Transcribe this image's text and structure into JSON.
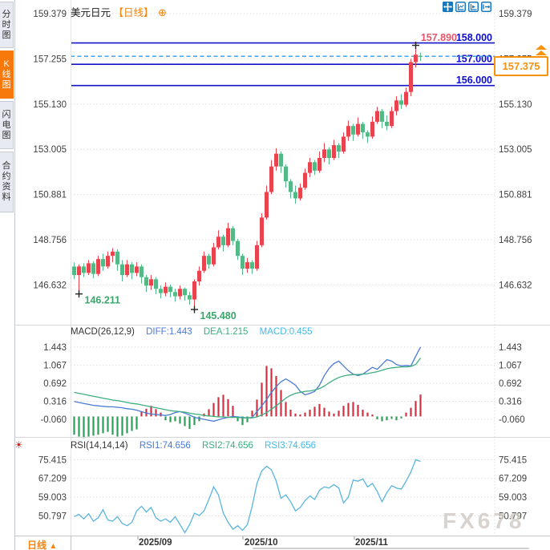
{
  "sidebar": {
    "tabs": [
      {
        "label": "分时图",
        "active": false
      },
      {
        "label": "K线图",
        "active": true
      },
      {
        "label": "闪电图",
        "active": false
      },
      {
        "label": "合约资料",
        "active": false
      }
    ]
  },
  "header": {
    "title": "美元日元",
    "period": "【日线】",
    "add_icon": "⊕"
  },
  "toolbar": {
    "icons": [
      "crosshair-move",
      "axis-range",
      "axis-play",
      "exit-chart"
    ]
  },
  "price_box": {
    "value": "157.375"
  },
  "bottom_bar": {
    "period_label": "日线",
    "arrow": "▲"
  },
  "watermark": "FX678",
  "colors": {
    "up": "#e8434e",
    "down": "#53b987",
    "navy_line": "#1414c8",
    "navy_label": "#0b0bd0",
    "high_label": "#e8556a",
    "dashed": "#2e9df0",
    "orange": "#f8920a",
    "grid": "#dedede",
    "axis_text": "#3f3f3f",
    "diff": "#4a7bd4",
    "dea": "#3fae7f",
    "macd_val": "#45b8e8",
    "hist_up": "#cc3344",
    "hist_down": "#2e9e5b",
    "rsi_line": "#58b6dd",
    "annotation": "#3aa76d",
    "marker": "#222222"
  },
  "chart_data": {
    "main": {
      "type": "candlestick",
      "title": "美元日元 日线",
      "y_ticks": [
        "159.379",
        "157.255",
        "155.130",
        "153.005",
        "150.881",
        "148.756",
        "146.632"
      ],
      "y_range": [
        146.632,
        159.379
      ],
      "hlines": [
        {
          "value": 158.0,
          "label": "158.000"
        },
        {
          "value": 157.0,
          "label": "157.000"
        },
        {
          "value": 156.0,
          "label": "156.000"
        }
      ],
      "high_annotation": {
        "label": "157.890",
        "value": 157.89,
        "index": 71
      },
      "low_annotations": [
        {
          "label": "146.211",
          "value": 146.211,
          "index": 1
        },
        {
          "label": "145.480",
          "value": 145.48,
          "index": 25
        }
      ],
      "current_price": 157.375,
      "x_labels": [
        {
          "label": "2025/09",
          "tick_x": 172
        },
        {
          "label": "2025/10",
          "tick_x": 303
        },
        {
          "label": "2025/11",
          "tick_x": 442
        }
      ],
      "candles": [
        [
          147.5,
          147.7,
          146.9,
          147.1
        ],
        [
          147.1,
          147.6,
          146.211,
          147.5
        ],
        [
          147.5,
          147.65,
          147.0,
          147.2
        ],
        [
          147.2,
          147.8,
          147.1,
          147.65
        ],
        [
          147.65,
          147.75,
          146.95,
          147.15
        ],
        [
          147.15,
          148.0,
          147.05,
          147.85
        ],
        [
          147.85,
          148.1,
          147.3,
          147.5
        ],
        [
          147.5,
          148.2,
          147.4,
          148.0
        ],
        [
          148.0,
          148.36,
          147.7,
          148.2
        ],
        [
          148.2,
          148.3,
          147.3,
          147.6
        ],
        [
          147.6,
          147.8,
          146.8,
          147.1
        ],
        [
          147.1,
          147.8,
          147.0,
          147.6
        ],
        [
          147.6,
          147.7,
          146.9,
          147.2
        ],
        [
          147.2,
          147.7,
          147.05,
          147.5
        ],
        [
          147.5,
          147.6,
          146.7,
          147.0
        ],
        [
          147.0,
          147.1,
          146.3,
          146.6
        ],
        [
          146.6,
          147.1,
          146.4,
          146.9
        ],
        [
          146.9,
          147.0,
          146.2,
          146.45
        ],
        [
          146.45,
          146.6,
          146.0,
          146.25
        ],
        [
          146.25,
          146.75,
          146.1,
          146.55
        ],
        [
          146.55,
          146.65,
          146.05,
          146.3
        ],
        [
          146.3,
          146.45,
          145.85,
          146.1
        ],
        [
          146.1,
          146.6,
          145.95,
          146.45
        ],
        [
          146.45,
          146.5,
          145.9,
          146.15
        ],
        [
          146.15,
          146.3,
          145.7,
          145.95
        ],
        [
          145.95,
          146.9,
          145.48,
          146.8
        ],
        [
          146.8,
          147.5,
          146.6,
          147.3
        ],
        [
          147.3,
          148.2,
          147.2,
          148.0
        ],
        [
          148.0,
          148.1,
          147.4,
          147.6
        ],
        [
          147.6,
          148.6,
          147.5,
          148.4
        ],
        [
          148.4,
          149.2,
          148.3,
          148.9
        ],
        [
          148.9,
          149.0,
          148.2,
          148.5
        ],
        [
          148.5,
          149.55,
          148.4,
          149.3
        ],
        [
          149.3,
          149.4,
          148.5,
          148.7
        ],
        [
          148.7,
          148.8,
          147.8,
          148.0
        ],
        [
          148.0,
          148.1,
          147.1,
          147.4
        ],
        [
          147.4,
          147.9,
          147.2,
          147.7
        ],
        [
          147.7,
          147.8,
          147.15,
          147.4
        ],
        [
          147.4,
          148.7,
          147.3,
          148.5
        ],
        [
          148.5,
          150.0,
          148.4,
          149.8
        ],
        [
          149.8,
          151.3,
          149.7,
          151.0
        ],
        [
          151.0,
          152.5,
          150.9,
          152.2
        ],
        [
          152.2,
          153.05,
          152.0,
          152.8
        ],
        [
          152.8,
          152.9,
          151.9,
          152.2
        ],
        [
          152.2,
          152.3,
          151.2,
          151.5
        ],
        [
          151.5,
          151.6,
          150.7,
          151.0
        ],
        [
          151.0,
          151.3,
          150.45,
          150.7
        ],
        [
          150.7,
          151.4,
          150.6,
          151.2
        ],
        [
          151.2,
          152.1,
          151.1,
          151.9
        ],
        [
          151.9,
          152.6,
          151.7,
          152.4
        ],
        [
          152.4,
          152.5,
          151.8,
          152.0
        ],
        [
          152.0,
          152.9,
          151.9,
          152.6
        ],
        [
          152.6,
          153.3,
          152.4,
          153.0
        ],
        [
          153.0,
          153.1,
          152.3,
          152.6
        ],
        [
          152.6,
          153.45,
          152.5,
          153.2
        ],
        [
          153.2,
          153.3,
          152.6,
          152.9
        ],
        [
          152.9,
          153.8,
          152.8,
          153.6
        ],
        [
          153.6,
          154.35,
          153.4,
          154.1
        ],
        [
          154.1,
          154.2,
          153.4,
          153.7
        ],
        [
          153.7,
          154.5,
          153.6,
          154.2
        ],
        [
          154.2,
          154.3,
          153.5,
          153.8
        ],
        [
          153.8,
          153.9,
          153.3,
          153.6
        ],
        [
          153.6,
          154.55,
          153.5,
          154.3
        ],
        [
          154.3,
          155.0,
          154.2,
          154.8
        ],
        [
          154.8,
          154.9,
          154.0,
          154.3
        ],
        [
          154.3,
          154.6,
          153.9,
          154.1
        ],
        [
          154.1,
          155.0,
          154.0,
          154.8
        ],
        [
          154.8,
          155.5,
          154.6,
          155.3
        ],
        [
          155.3,
          155.6,
          154.9,
          155.1
        ],
        [
          155.1,
          155.9,
          155.0,
          155.7
        ],
        [
          155.7,
          157.25,
          155.5,
          157.1
        ],
        [
          157.1,
          157.89,
          156.85,
          157.45
        ],
        [
          157.4,
          157.55,
          157.15,
          157.375
        ]
      ]
    },
    "macd": {
      "type": "line+bar",
      "title": "MACD(26,12,9)",
      "diff_label": "DIFF:1.443",
      "dea_label": "DEA:1.215",
      "macd_label": "MACD:0.455",
      "y_ticks": [
        "1.443",
        "1.067",
        "0.692",
        "0.316",
        "-0.060"
      ],
      "diff": [
        0.31,
        0.29,
        0.27,
        0.25,
        0.23,
        0.22,
        0.21,
        0.2,
        0.2,
        0.19,
        0.18,
        0.16,
        0.15,
        0.13,
        0.1,
        0.07,
        0.05,
        0.04,
        0.03,
        0.02,
        0.04,
        0.08,
        0.1,
        0.07,
        0.03,
        -0.02,
        -0.04,
        -0.06,
        -0.08,
        -0.1,
        -0.07,
        -0.04,
        -0.02,
        0.0,
        -0.01,
        -0.02,
        -0.03,
        -0.02,
        0.1,
        0.22,
        0.35,
        0.5,
        0.62,
        0.72,
        0.78,
        0.72,
        0.65,
        0.52,
        0.45,
        0.48,
        0.52,
        0.65,
        0.85,
        1.0,
        1.1,
        1.15,
        1.05,
        0.95,
        0.88,
        0.85,
        0.88,
        0.95,
        1.02,
        0.98,
        1.08,
        1.18,
        1.15,
        1.08,
        1.05,
        1.06,
        1.05,
        1.25,
        1.443
      ],
      "dea": [
        0.5,
        0.48,
        0.46,
        0.44,
        0.42,
        0.4,
        0.38,
        0.36,
        0.34,
        0.33,
        0.31,
        0.29,
        0.27,
        0.26,
        0.24,
        0.22,
        0.2,
        0.18,
        0.16,
        0.14,
        0.12,
        0.11,
        0.1,
        0.09,
        0.07,
        0.05,
        0.04,
        0.02,
        0.01,
        0.0,
        -0.01,
        -0.01,
        -0.02,
        -0.02,
        -0.02,
        -0.03,
        -0.03,
        -0.03,
        -0.01,
        0.03,
        0.08,
        0.15,
        0.22,
        0.3,
        0.38,
        0.44,
        0.48,
        0.5,
        0.52,
        0.53,
        0.55,
        0.58,
        0.63,
        0.7,
        0.76,
        0.81,
        0.84,
        0.86,
        0.87,
        0.87,
        0.88,
        0.89,
        0.91,
        0.93,
        0.96,
        0.99,
        1.01,
        1.02,
        1.03,
        1.03,
        1.04,
        1.08,
        1.215
      ],
      "hist": [
        -0.38,
        -0.42,
        -0.45,
        -0.42,
        -0.4,
        -0.38,
        -0.35,
        -0.32,
        -0.38,
        -0.42,
        -0.4,
        -0.35,
        -0.3,
        -0.27,
        0.1,
        0.16,
        0.22,
        0.15,
        0.08,
        -0.08,
        -0.12,
        -0.1,
        -0.15,
        -0.2,
        -0.26,
        -0.18,
        -0.1,
        0.06,
        0.15,
        0.28,
        0.4,
        0.45,
        0.36,
        0.22,
        -0.1,
        -0.18,
        -0.12,
        0.12,
        0.35,
        0.7,
        1.05,
        1.0,
        0.84,
        0.55,
        0.3,
        0.14,
        0.06,
        0.04,
        0.08,
        0.14,
        0.2,
        0.26,
        0.18,
        0.1,
        0.06,
        0.12,
        0.22,
        0.28,
        0.3,
        0.24,
        0.14,
        0.08,
        0.04,
        -0.06,
        -0.1,
        -0.08,
        -0.05,
        -0.08,
        -0.04,
        0.08,
        0.18,
        0.32,
        0.455
      ]
    },
    "rsi": {
      "type": "line",
      "title": "RSI(14,14,14)",
      "rsi1_label": "RSI1:74.656",
      "rsi2_label": "RSI2:74.656",
      "rsi3_label": "RSI3:74.656",
      "y_ticks": [
        "75.415",
        "67.209",
        "59.003",
        "50.797"
      ],
      "values": [
        50.5,
        51.5,
        49.5,
        51.8,
        48.5,
        50.0,
        53.5,
        49.0,
        48.5,
        50.5,
        47.5,
        46.5,
        48.0,
        53.0,
        55.0,
        52.5,
        54.5,
        50.0,
        48.5,
        49.5,
        48.0,
        50.5,
        47.0,
        43.5,
        47.0,
        52.0,
        51.0,
        53.0,
        58.0,
        63.5,
        60.0,
        52.0,
        48.0,
        45.0,
        46.5,
        44.5,
        47.0,
        55.0,
        65.0,
        70.5,
        72.5,
        71.0,
        66.0,
        58.5,
        60.0,
        57.0,
        53.0,
        54.5,
        57.5,
        59.5,
        58.0,
        62.0,
        63.5,
        63.0,
        64.5,
        63.0,
        56.5,
        59.0,
        66.5,
        66.0,
        67.0,
        63.5,
        65.0,
        61.5,
        57.0,
        61.0,
        64.0,
        63.0,
        62.5,
        66.0,
        70.0,
        75.4,
        74.656
      ]
    }
  }
}
